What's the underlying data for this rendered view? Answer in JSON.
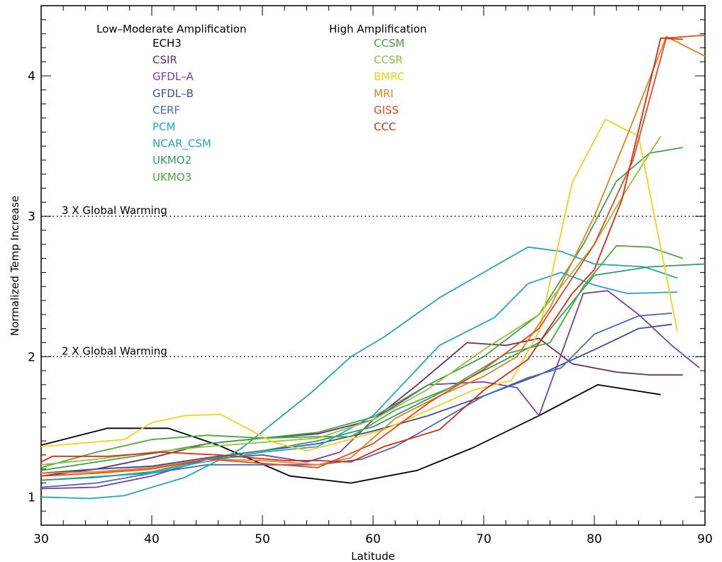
{
  "chart_data": {
    "type": "line",
    "xlabel": "Latitude",
    "ylabel": "Normalized Temp Increase",
    "xlim": [
      30,
      90
    ],
    "ylim": [
      0.8,
      4.5
    ],
    "xticks": [
      30,
      40,
      50,
      60,
      70,
      80,
      90
    ],
    "yticks": [
      1,
      2,
      3,
      4
    ],
    "grid": false,
    "reference_lines": [
      {
        "y": 3,
        "label": "3 X Global Warming"
      },
      {
        "y": 2,
        "label": "2 X Global Warming"
      }
    ],
    "legend_groups": [
      {
        "title": "Low–Moderate Amplification",
        "items": [
          "ECH3",
          "CSIR",
          "GFDL–A",
          "GFDL–B",
          "CERF",
          "PCM",
          "NCAR_CSM",
          "UKMO2",
          "UKMO3"
        ]
      },
      {
        "title": "High Amplification",
        "items": [
          "CCSM",
          "CCSR",
          "BMRC",
          "MRI",
          "GISS",
          "CCC"
        ]
      }
    ],
    "series": [
      {
        "name": "ECH3",
        "color": "#000000",
        "x": [
          30,
          36,
          41.5,
          46,
          52.5,
          58,
          64,
          69,
          75,
          80.3,
          86
        ],
        "values": [
          1.37,
          1.49,
          1.49,
          1.37,
          1.15,
          1.1,
          1.19,
          1.35,
          1.58,
          1.8,
          1.73
        ]
      },
      {
        "name": "CSIR",
        "color": "#6b2d5c",
        "x": [
          30,
          35,
          40,
          45,
          50,
          55,
          60,
          64,
          68.5,
          72,
          75,
          78,
          82,
          85,
          88
        ],
        "values": [
          1.15,
          1.2,
          1.28,
          1.38,
          1.42,
          1.45,
          1.55,
          1.8,
          2.1,
          2.08,
          2.13,
          1.95,
          1.89,
          1.87,
          1.87
        ]
      },
      {
        "name": "GFDL–A",
        "color": "#7a3fa0",
        "x": [
          30,
          35,
          40,
          45,
          50,
          54,
          57,
          60,
          65,
          70,
          73,
          75,
          79,
          81.2,
          84,
          87,
          89.5
        ],
        "values": [
          1.06,
          1.07,
          1.15,
          1.27,
          1.3,
          1.25,
          1.32,
          1.55,
          1.8,
          1.82,
          1.78,
          1.58,
          2.45,
          2.47,
          2.3,
          2.08,
          1.92
        ]
      },
      {
        "name": "GFDL–B",
        "color": "#3c4ea0",
        "x": [
          30,
          35,
          40,
          45,
          50,
          55,
          60,
          65,
          70,
          75,
          80,
          84,
          87
        ],
        "values": [
          1.17,
          1.2,
          1.22,
          1.28,
          1.33,
          1.38,
          1.47,
          1.58,
          1.72,
          1.87,
          2.05,
          2.2,
          2.23
        ]
      },
      {
        "name": "CERF",
        "color": "#4a68c0",
        "x": [
          30,
          35,
          40,
          45,
          50,
          55,
          59,
          62,
          66,
          70,
          74,
          77,
          80,
          84,
          87
        ],
        "values": [
          1.07,
          1.1,
          1.17,
          1.23,
          1.23,
          1.23,
          1.27,
          1.36,
          1.54,
          1.72,
          1.85,
          1.92,
          2.16,
          2.29,
          2.31
        ]
      },
      {
        "name": "PCM",
        "color": "#22a6d6",
        "x": [
          30,
          34,
          40,
          44,
          50,
          55,
          60,
          66,
          71,
          74,
          77,
          80,
          83,
          87.5
        ],
        "values": [
          1.12,
          1.14,
          1.17,
          1.24,
          1.32,
          1.36,
          1.58,
          2.08,
          2.28,
          2.52,
          2.6,
          2.51,
          2.45,
          2.46
        ]
      },
      {
        "name": "NCAR_CSM",
        "color": "#23a9b2",
        "x": [
          30,
          34.5,
          37.5,
          43,
          48,
          54.5,
          58,
          61,
          66,
          70,
          74,
          77,
          80,
          84.5,
          87.5
        ],
        "values": [
          1.0,
          0.99,
          1.01,
          1.14,
          1.34,
          1.75,
          2.0,
          2.14,
          2.42,
          2.6,
          2.78,
          2.75,
          2.66,
          2.64,
          2.56
        ]
      },
      {
        "name": "UKMO2",
        "color": "#2e9e62",
        "x": [
          30,
          35,
          40,
          45,
          50,
          55,
          60,
          65,
          70,
          75,
          80,
          85,
          90
        ],
        "values": [
          1.12,
          1.14,
          1.18,
          1.27,
          1.33,
          1.4,
          1.5,
          1.7,
          1.9,
          2.1,
          2.58,
          2.64,
          2.66
        ]
      },
      {
        "name": "UKMO3",
        "color": "#4aaa3a",
        "x": [
          30,
          35,
          40,
          45,
          50,
          55,
          58,
          62,
          67,
          72,
          76,
          79,
          82,
          85,
          88
        ],
        "values": [
          1.21,
          1.32,
          1.41,
          1.44,
          1.42,
          1.43,
          1.43,
          1.62,
          1.78,
          2.02,
          2.1,
          2.5,
          2.79,
          2.78,
          2.7
        ]
      },
      {
        "name": "CCSM",
        "color": "#44a049",
        "x": [
          30,
          35,
          40,
          45,
          50,
          55,
          60,
          65,
          70,
          75,
          79,
          82,
          85,
          88
        ],
        "values": [
          1.19,
          1.25,
          1.31,
          1.38,
          1.42,
          1.46,
          1.57,
          1.8,
          2.0,
          2.3,
          2.8,
          3.25,
          3.45,
          3.49
        ]
      },
      {
        "name": "CCSR",
        "color": "#8cc43c",
        "x": [
          30,
          35,
          40,
          45,
          50,
          55,
          60,
          65,
          70,
          75,
          80,
          83,
          86
        ],
        "values": [
          1.23,
          1.27,
          1.32,
          1.36,
          1.39,
          1.42,
          1.55,
          1.77,
          2.05,
          2.3,
          2.8,
          3.2,
          3.57
        ]
      },
      {
        "name": "BMRC",
        "color": "#f2d21a",
        "x": [
          30,
          37.5,
          40,
          43,
          46.2,
          51,
          54,
          57,
          61,
          65,
          69,
          72.5,
          75,
          78,
          81,
          84,
          87.5
        ],
        "values": [
          1.36,
          1.41,
          1.53,
          1.58,
          1.59,
          1.39,
          1.33,
          1.39,
          1.48,
          1.62,
          1.76,
          1.83,
          2.18,
          3.24,
          3.69,
          3.57,
          2.18
        ]
      },
      {
        "name": "MRI",
        "color": "#e8821e",
        "x": [
          30,
          35,
          40,
          45,
          50,
          55,
          58,
          62,
          66,
          70,
          73,
          76,
          80,
          83,
          86.5,
          90
        ],
        "values": [
          1.17,
          1.18,
          1.21,
          1.27,
          1.26,
          1.23,
          1.28,
          1.56,
          1.72,
          1.86,
          2.0,
          2.35,
          3.0,
          3.58,
          4.28,
          4.14
        ]
      },
      {
        "name": "GISS",
        "color": "#e84a1e",
        "x": [
          30,
          35,
          40,
          45,
          50,
          55,
          60,
          65,
          70,
          75,
          80,
          83.5,
          86.5,
          90
        ],
        "values": [
          1.15,
          1.17,
          1.2,
          1.27,
          1.24,
          1.21,
          1.38,
          1.67,
          1.91,
          2.2,
          2.8,
          3.4,
          4.27,
          4.29
        ]
      },
      {
        "name": "CCC",
        "color": "#dc2a12",
        "x": [
          30,
          31,
          36,
          41,
          46,
          52,
          55,
          58,
          61,
          66,
          70,
          74,
          78,
          80,
          82.5,
          86,
          88
        ],
        "values": [
          1.25,
          1.29,
          1.29,
          1.32,
          1.3,
          1.26,
          1.26,
          1.25,
          1.36,
          1.48,
          1.76,
          1.98,
          2.45,
          2.62,
          3.12,
          4.27,
          4.26
        ]
      }
    ]
  }
}
